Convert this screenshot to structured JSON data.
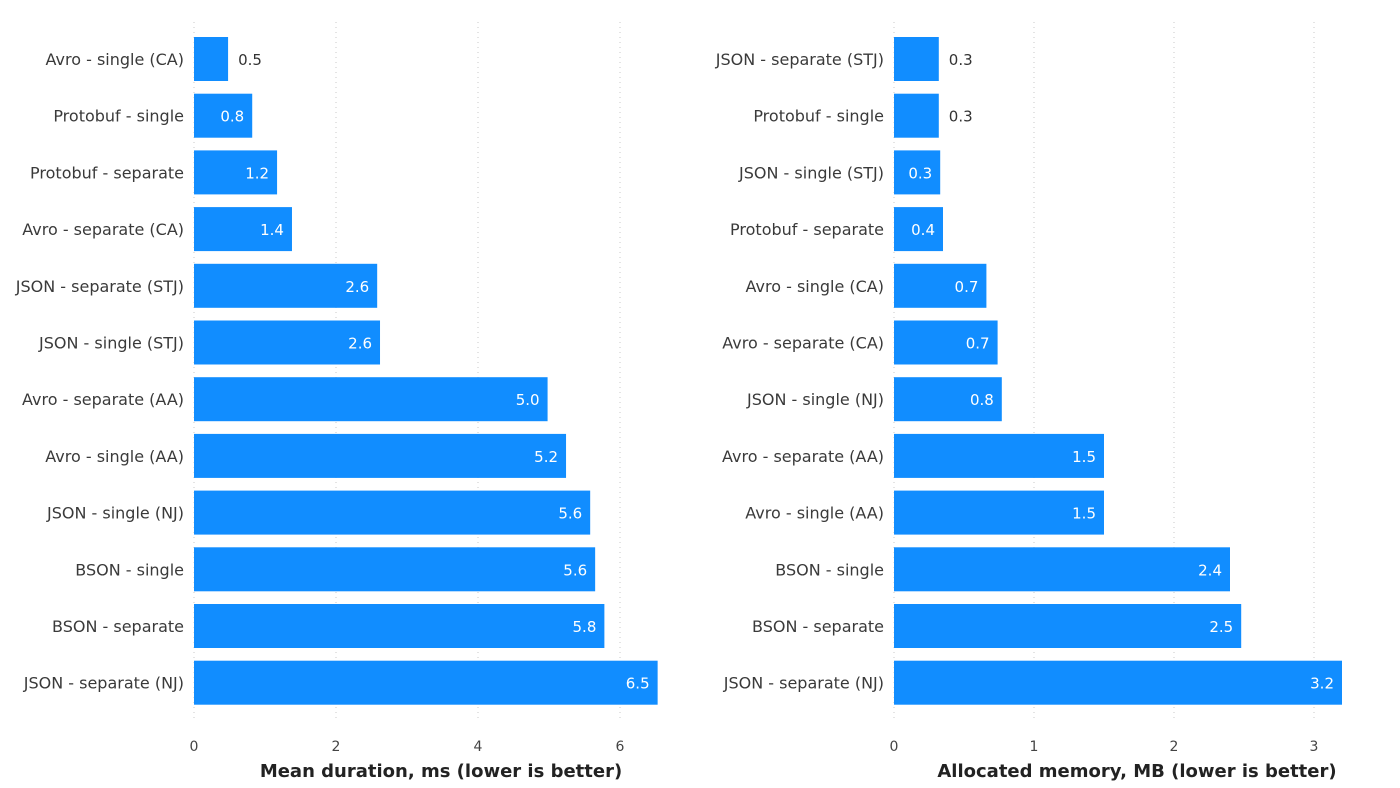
{
  "chart_data": [
    {
      "type": "bar",
      "orientation": "horizontal",
      "xlabel": "Mean duration, ms (lower is better)",
      "xlim": [
        0,
        6.5
      ],
      "xticks": [
        0,
        2,
        4,
        6
      ],
      "grid": "vertical dotted",
      "bar_color": "#118dff",
      "categories": [
        "Avro - single (CA)",
        "Protobuf - single",
        "Protobuf - separate",
        "Avro - separate (CA)",
        "JSON - separate (STJ)",
        "JSON - single (STJ)",
        "Avro - separate (AA)",
        "Avro - single (AA)",
        "JSON - single (NJ)",
        "BSON - single",
        "BSON - separate",
        "JSON - separate (NJ)"
      ],
      "values": [
        0.48,
        0.82,
        1.17,
        1.38,
        2.58,
        2.62,
        4.98,
        5.24,
        5.58,
        5.65,
        5.78,
        6.53
      ],
      "labels": [
        "0.5",
        "0.8",
        "1.2",
        "1.4",
        "2.6",
        "2.6",
        "5.0",
        "5.2",
        "5.6",
        "5.6",
        "5.8",
        "6.5"
      ]
    },
    {
      "type": "bar",
      "orientation": "horizontal",
      "xlabel": "Allocated memory, MB (lower is better)",
      "xlim": [
        0,
        3.2
      ],
      "xticks": [
        0,
        1,
        2,
        3
      ],
      "grid": "vertical dotted",
      "bar_color": "#118dff",
      "categories": [
        "JSON - separate (STJ)",
        "Protobuf - single",
        "JSON - single (STJ)",
        "Protobuf - separate",
        "Avro - single (CA)",
        "Avro - separate (CA)",
        "JSON - single (NJ)",
        "Avro - separate (AA)",
        "Avro - single (AA)",
        "BSON - single",
        "BSON - separate",
        "JSON - separate (NJ)"
      ],
      "values": [
        0.32,
        0.32,
        0.33,
        0.35,
        0.66,
        0.74,
        0.77,
        1.5,
        1.5,
        2.4,
        2.48,
        3.2
      ],
      "labels": [
        "0.3",
        "0.3",
        "0.3",
        "0.4",
        "0.7",
        "0.7",
        "0.8",
        "1.5",
        "1.5",
        "2.4",
        "2.5",
        "3.2"
      ]
    }
  ]
}
